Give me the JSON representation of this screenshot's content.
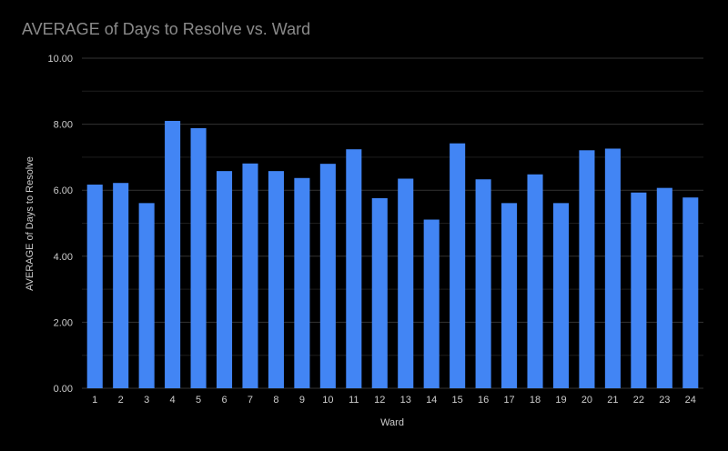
{
  "chart_data": {
    "type": "bar",
    "title": "AVERAGE of Days to Resolve vs. Ward",
    "xlabel": "Ward",
    "ylabel": "AVERAGE of Days to Resolve",
    "ylim": [
      0,
      10
    ],
    "yticks": [
      0,
      2,
      4,
      6,
      8,
      10
    ],
    "ytick_labels": [
      "0.00",
      "2.00",
      "4.00",
      "6.00",
      "8.00",
      "10.00"
    ],
    "grid": true,
    "categories": [
      "1",
      "2",
      "3",
      "4",
      "5",
      "6",
      "7",
      "8",
      "9",
      "10",
      "11",
      "12",
      "13",
      "14",
      "15",
      "16",
      "17",
      "18",
      "19",
      "20",
      "21",
      "22",
      "23",
      "24"
    ],
    "series": [
      {
        "name": "AVERAGE of Days to Resolve",
        "values": [
          6.17,
          6.22,
          5.61,
          8.1,
          7.88,
          6.58,
          6.81,
          6.58,
          6.37,
          6.8,
          7.24,
          5.76,
          6.35,
          5.11,
          7.42,
          6.33,
          5.61,
          6.48,
          5.61,
          7.21,
          7.26,
          5.93,
          6.07,
          5.78
        ],
        "color": "#4285f4"
      }
    ],
    "colors": {
      "background": "#000000",
      "gridline": "#2a2a2a",
      "title_text": "#8a8a8a",
      "label_text": "#cccccc"
    }
  }
}
